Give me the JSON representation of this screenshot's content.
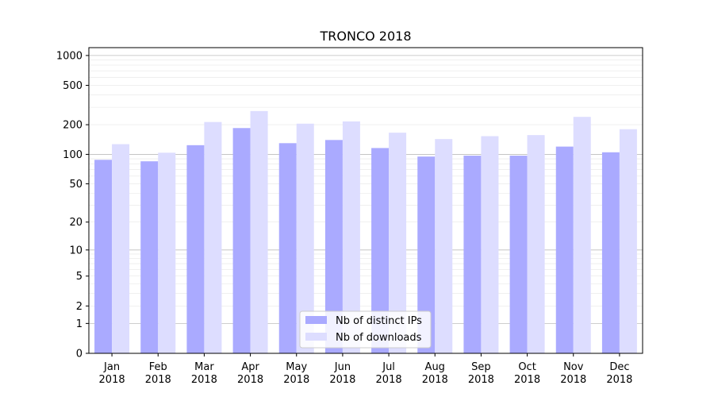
{
  "chart_data": {
    "type": "bar",
    "title": "TRONCO 2018",
    "xlabel": "",
    "ylabel": "",
    "categories": [
      [
        "Jan",
        "2018"
      ],
      [
        "Feb",
        "2018"
      ],
      [
        "Mar",
        "2018"
      ],
      [
        "Apr",
        "2018"
      ],
      [
        "May",
        "2018"
      ],
      [
        "Jun",
        "2018"
      ],
      [
        "Jul",
        "2018"
      ],
      [
        "Aug",
        "2018"
      ],
      [
        "Sep",
        "2018"
      ],
      [
        "Oct",
        "2018"
      ],
      [
        "Nov",
        "2018"
      ],
      [
        "Dec",
        "2018"
      ]
    ],
    "series": [
      {
        "name": "Nb of distinct IPs",
        "color": "#aaaaff",
        "values": [
          88,
          85,
          124,
          185,
          130,
          140,
          116,
          95,
          97,
          97,
          120,
          105
        ]
      },
      {
        "name": "Nb of downloads",
        "color": "#ddddff",
        "values": [
          127,
          104,
          213,
          275,
          205,
          216,
          166,
          143,
          153,
          157,
          240,
          180
        ]
      }
    ],
    "yscale": "log(1+y)",
    "ylim": [
      0,
      1200
    ],
    "yticks": [
      0,
      1,
      2,
      5,
      10,
      20,
      50,
      100,
      200,
      500,
      1000
    ],
    "grid": true,
    "legend_position": "bottom-center"
  }
}
